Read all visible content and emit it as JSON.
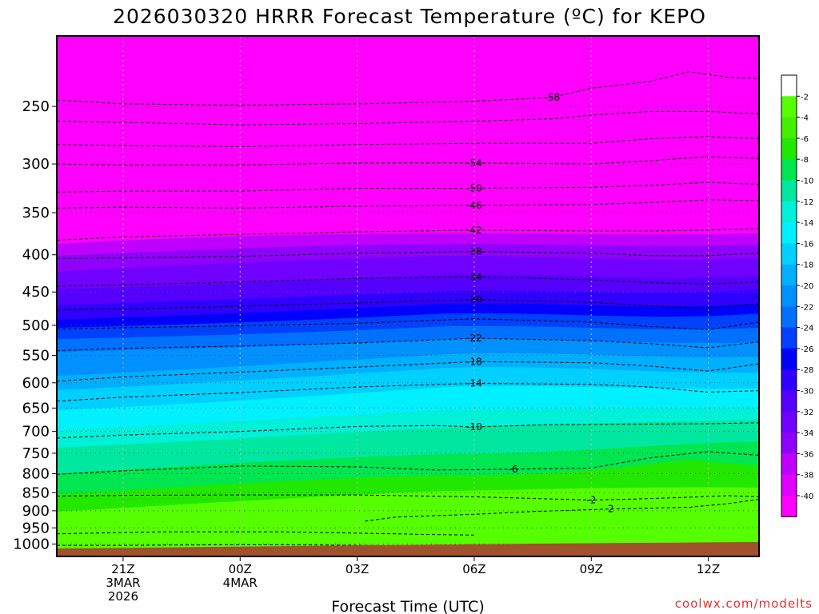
{
  "chart_data": {
    "type": "heatmap",
    "title": "2026030320 HRRR Forecast Temperature (ºC) for KEPO",
    "xlabel": "Forecast Time (UTC)",
    "ylabel": "",
    "credit": "coolwx.com/modelts",
    "x_range_hours": [
      -1.7,
      16.3
    ],
    "y_range_hPa": [
      200,
      1040
    ],
    "y_scale": "log-pressure, inverted",
    "x_ticks": [
      {
        "hour": 0,
        "lines": [
          "21Z",
          "3MAR",
          "2026"
        ]
      },
      {
        "hour": 3,
        "lines": [
          "00Z",
          "4MAR"
        ]
      },
      {
        "hour": 6,
        "lines": [
          "03Z"
        ]
      },
      {
        "hour": 9,
        "lines": [
          "06Z"
        ]
      },
      {
        "hour": 12,
        "lines": [
          "09Z"
        ]
      },
      {
        "hour": 15,
        "lines": [
          "12Z"
        ]
      }
    ],
    "y_ticks": [
      250,
      300,
      350,
      400,
      450,
      500,
      550,
      600,
      650,
      700,
      750,
      800,
      850,
      900,
      950,
      1000
    ],
    "grid": true,
    "colorbar": {
      "placement": "right",
      "levels": [
        -2,
        -4,
        -6,
        -8,
        -10,
        -12,
        -14,
        -16,
        -18,
        -20,
        -22,
        -24,
        -26,
        -28,
        -30,
        -32,
        -34,
        -36,
        -38,
        -40
      ],
      "labels": [
        "-2",
        "-4",
        "-6",
        "-8",
        "-10",
        "-12",
        "-14",
        "-16",
        "-18",
        "-20",
        "-22",
        "-24",
        "-26",
        "-28",
        "-30",
        "-32",
        "-34",
        "-36",
        "-38",
        "-40"
      ],
      "colors": [
        "#ffffff",
        "#55ff00",
        "#44f000",
        "#22e800",
        "#00e650",
        "#00e8a0",
        "#00f0d8",
        "#00f0ff",
        "#00d0ff",
        "#00b0ff",
        "#0090ff",
        "#0070ff",
        "#0040ff",
        "#0000ff",
        "#3000ff",
        "#5500ff",
        "#7000ff",
        "#9000ff",
        "#c000ff",
        "#e000ff",
        "#ff00ff"
      ]
    },
    "contours": [
      {
        "label": "-58",
        "points": [
          [
            -1.7,
            245
          ],
          [
            0,
            248
          ],
          [
            3,
            249
          ],
          [
            6,
            248
          ],
          [
            9,
            246
          ],
          [
            11,
            243
          ],
          [
            12,
            236
          ],
          [
            13.5,
            231
          ],
          [
            14.5,
            224
          ],
          [
            15.5,
            228
          ],
          [
            16.3,
            229
          ]
        ]
      },
      {
        "label": "",
        "points": [
          [
            -1.7,
            262
          ],
          [
            0,
            263
          ],
          [
            3,
            265
          ],
          [
            6,
            264
          ],
          [
            9,
            262
          ],
          [
            11,
            260
          ],
          [
            12,
            257
          ],
          [
            13.5,
            254
          ],
          [
            15,
            254
          ],
          [
            16.3,
            256
          ]
        ]
      },
      {
        "label": "",
        "points": [
          [
            -1.7,
            282
          ],
          [
            0,
            283
          ],
          [
            3,
            284
          ],
          [
            6,
            282
          ],
          [
            9,
            281
          ],
          [
            12,
            281
          ],
          [
            13.5,
            277
          ],
          [
            15,
            275
          ],
          [
            16.3,
            277
          ]
        ]
      },
      {
        "label": "-54",
        "points": [
          [
            -1.7,
            300
          ],
          [
            0,
            301
          ],
          [
            3,
            301
          ],
          [
            6,
            299
          ],
          [
            9,
            299
          ],
          [
            12,
            300
          ],
          [
            13.5,
            297
          ],
          [
            15,
            293
          ],
          [
            16.3,
            295
          ]
        ]
      },
      {
        "label": "-50",
        "points": [
          [
            -1.7,
            328
          ],
          [
            0,
            327
          ],
          [
            3,
            327
          ],
          [
            6,
            324
          ],
          [
            9,
            324
          ],
          [
            12,
            323
          ],
          [
            13.5,
            321
          ],
          [
            15,
            318
          ],
          [
            16.3,
            320
          ]
        ]
      },
      {
        "label": "-46",
        "points": [
          [
            -1.7,
            345
          ],
          [
            0,
            344
          ],
          [
            3,
            345
          ],
          [
            6,
            343
          ],
          [
            9,
            342
          ],
          [
            12,
            341
          ],
          [
            13.5,
            339
          ],
          [
            15,
            336
          ],
          [
            16.3,
            337
          ]
        ]
      },
      {
        "label": "-42",
        "points": [
          [
            -1.7,
            382
          ],
          [
            0,
            378
          ],
          [
            3,
            375
          ],
          [
            6,
            372
          ],
          [
            9,
            370
          ],
          [
            12,
            371
          ],
          [
            13.5,
            371
          ],
          [
            15,
            370
          ],
          [
            16.3,
            368
          ]
        ]
      },
      {
        "label": "-38",
        "points": [
          [
            -1.7,
            405
          ],
          [
            0,
            404
          ],
          [
            3,
            402
          ],
          [
            6,
            398
          ],
          [
            9,
            396
          ],
          [
            12,
            398
          ],
          [
            13.5,
            401
          ],
          [
            15,
            401
          ],
          [
            16.3,
            398
          ]
        ]
      },
      {
        "label": "-34",
        "points": [
          [
            -1.7,
            442
          ],
          [
            0,
            440
          ],
          [
            3,
            436
          ],
          [
            6,
            431
          ],
          [
            9,
            429
          ],
          [
            12,
            433
          ],
          [
            13.5,
            437
          ],
          [
            15,
            439
          ],
          [
            16.3,
            436
          ]
        ]
      },
      {
        "label": "-30",
        "points": [
          [
            -1.7,
            476
          ],
          [
            0,
            475
          ],
          [
            3,
            471
          ],
          [
            6,
            466
          ],
          [
            9,
            461
          ],
          [
            12,
            465
          ],
          [
            13.5,
            470
          ],
          [
            15,
            474
          ],
          [
            16.3,
            467
          ]
        ]
      },
      {
        "label": "",
        "points": [
          [
            -1.7,
            506
          ],
          [
            0,
            504
          ],
          [
            3,
            501
          ],
          [
            6,
            497
          ],
          [
            9,
            490
          ],
          [
            12,
            495
          ],
          [
            13.5,
            502
          ],
          [
            15,
            507
          ],
          [
            16.3,
            495
          ]
        ]
      },
      {
        "label": "-22",
        "points": [
          [
            -1.7,
            542
          ],
          [
            0,
            538
          ],
          [
            3,
            534
          ],
          [
            6,
            529
          ],
          [
            9,
            521
          ],
          [
            12,
            525
          ],
          [
            13.5,
            530
          ],
          [
            15,
            537
          ],
          [
            16.3,
            527
          ]
        ]
      },
      {
        "label": "-18",
        "points": [
          [
            -1.7,
            597
          ],
          [
            0,
            589
          ],
          [
            3,
            580
          ],
          [
            6,
            571
          ],
          [
            9,
            561
          ],
          [
            12,
            563
          ],
          [
            13.5,
            569
          ],
          [
            15,
            578
          ],
          [
            16.3,
            565
          ]
        ]
      },
      {
        "label": "-14",
        "points": [
          [
            -1.7,
            636
          ],
          [
            0,
            628
          ],
          [
            3,
            619
          ],
          [
            6,
            608
          ],
          [
            9,
            601
          ],
          [
            12,
            603
          ],
          [
            13.5,
            608
          ],
          [
            15,
            618
          ],
          [
            16.3,
            615
          ]
        ]
      },
      {
        "label": "-10",
        "points": [
          [
            -1.7,
            715
          ],
          [
            0,
            708
          ],
          [
            3,
            700
          ],
          [
            6,
            689
          ],
          [
            8,
            687
          ],
          [
            9,
            690
          ],
          [
            11,
            685
          ],
          [
            13.5,
            684
          ],
          [
            15,
            683
          ],
          [
            16.3,
            681
          ]
        ]
      },
      {
        "label": "-6",
        "points": [
          [
            -1.7,
            802
          ],
          [
            0,
            793
          ],
          [
            3,
            781
          ],
          [
            6,
            783
          ],
          [
            8,
            791
          ],
          [
            10,
            789
          ],
          [
            12,
            786
          ],
          [
            13.5,
            761
          ],
          [
            15,
            746
          ],
          [
            16.3,
            755
          ]
        ]
      },
      {
        "label": "-2",
        "points": [
          [
            -1.7,
            859
          ],
          [
            0,
            857
          ],
          [
            3,
            856
          ],
          [
            6,
            856
          ],
          [
            9,
            861
          ],
          [
            12,
            870
          ],
          [
            13.5,
            866
          ],
          [
            14.5,
            862
          ],
          [
            15.5,
            858
          ],
          [
            16.3,
            861
          ]
        ]
      },
      {
        "label": "2",
        "points": [
          [
            6.2,
            930
          ],
          [
            7,
            918
          ],
          [
            9,
            910
          ],
          [
            10.5,
            902
          ],
          [
            12.5,
            895
          ],
          [
            14.5,
            890
          ],
          [
            15.5,
            880
          ],
          [
            16.3,
            868
          ]
        ]
      },
      {
        "label": "",
        "points": [
          [
            -1.7,
            968
          ],
          [
            1,
            962
          ],
          [
            4,
            962
          ],
          [
            7,
            968
          ],
          [
            7.7,
            970
          ],
          [
            9,
            972
          ]
        ]
      },
      {
        "label": "",
        "points": [
          [
            -1.7,
            1004
          ],
          [
            0,
            1004
          ],
          [
            3,
            1002
          ],
          [
            5,
            1003
          ],
          [
            7,
            1005
          ],
          [
            9,
            1002
          ],
          [
            12,
            1001
          ],
          [
            15,
            1003
          ],
          [
            16.3,
            1001
          ]
        ]
      }
    ]
  }
}
